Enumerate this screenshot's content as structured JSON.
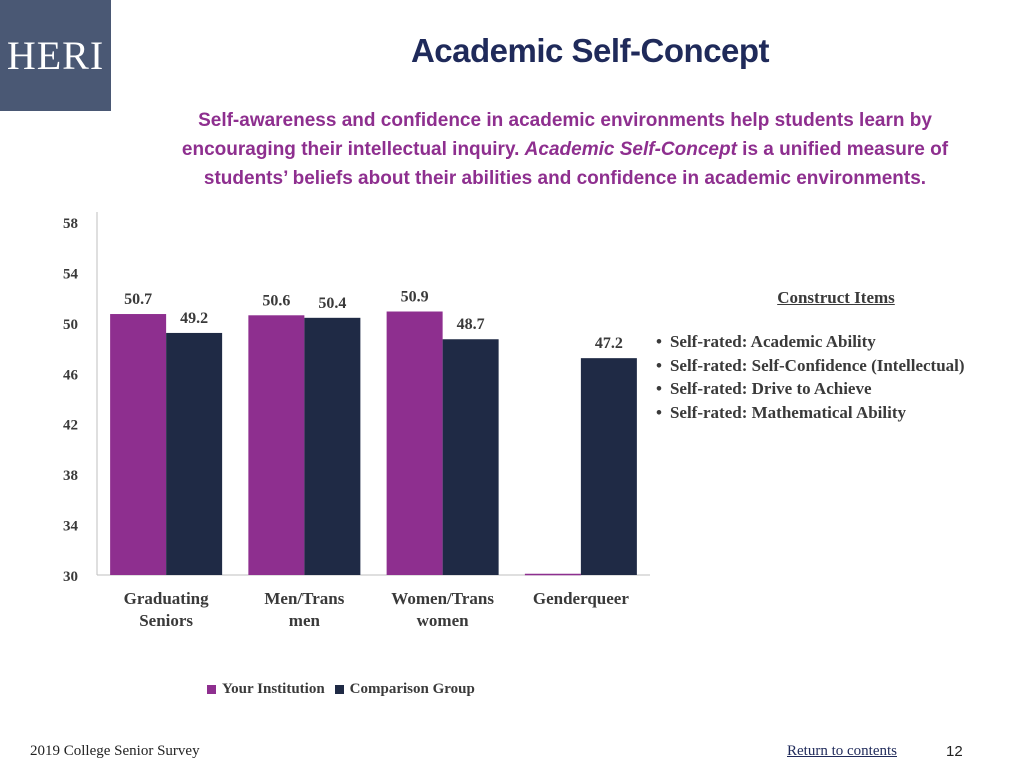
{
  "logo": {
    "text": "HERI",
    "bg_color": "#4a5874"
  },
  "header": {
    "title": "Academic Self-Concept",
    "subtitle_line1": "Self-awareness and confidence in academic environments help students learn by",
    "subtitle_line2_a": "encouraging their intellectual inquiry. ",
    "subtitle_line2_b": "Academic Self-Concept",
    "subtitle_line2_c": " is a unified measure of",
    "subtitle_line3": "students’ beliefs about their abilities and confidence in academic environments."
  },
  "chart_data": {
    "type": "bar",
    "categories": [
      "Graduating\nSeniors",
      "Men/Trans\nmen",
      "Women/Trans\nwomen",
      "Genderqueer"
    ],
    "series": [
      {
        "name": "Your Institution",
        "color": "#8e2f8f",
        "values": [
          50.7,
          50.6,
          50.9,
          null
        ]
      },
      {
        "name": "Comparison Group",
        "color": "#1f2a45",
        "values": [
          49.2,
          50.4,
          48.7,
          47.2
        ]
      }
    ],
    "yticks": [
      30,
      34,
      38,
      42,
      46,
      50,
      54,
      58
    ],
    "ylim": [
      30,
      58
    ],
    "legend_position": "bottom",
    "grid": false
  },
  "construct": {
    "heading": "Construct Items",
    "items": [
      "Self-rated: Academic Ability",
      "Self-rated: Self-Confidence (Intellectual)",
      "Self-rated: Drive to Achieve",
      "Self-rated: Mathematical Ability"
    ]
  },
  "footer": {
    "survey": "2019 College Senior Survey",
    "link": "Return to contents",
    "page": "12"
  }
}
